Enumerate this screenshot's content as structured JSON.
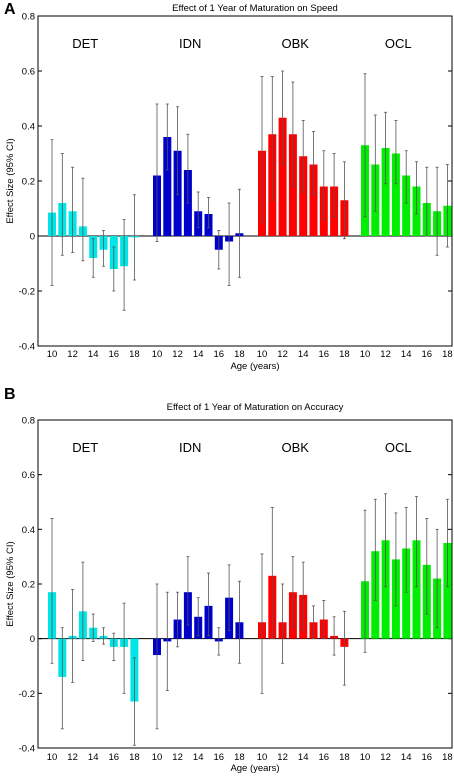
{
  "chart_data": [
    {
      "panel": "A",
      "type": "bar",
      "title": "Effect of 1 Year of Maturation on Speed",
      "xlabel": "Age (years)",
      "ylabel": "Effect Size (95% CI)",
      "ylim": [
        -0.4,
        0.8
      ],
      "yticks": [
        "0.8",
        "0.6",
        "0.4",
        "0.2",
        "0",
        "-0.2",
        "-0.4"
      ],
      "categories": [
        "10",
        "11",
        "12",
        "13",
        "14",
        "15",
        "16",
        "17",
        "18"
      ],
      "xtick_labels": [
        "10",
        "12",
        "14",
        "16",
        "18"
      ],
      "grid": false,
      "series": [
        {
          "name": "DET",
          "color": "#00e5e5",
          "values": [
            0.085,
            0.12,
            0.09,
            0.035,
            -0.08,
            -0.05,
            -0.12,
            -0.11,
            -0.005
          ],
          "ci_low": [
            -0.18,
            -0.07,
            -0.06,
            -0.09,
            -0.15,
            -0.11,
            -0.2,
            -0.27,
            -0.16
          ],
          "ci_high": [
            0.35,
            0.3,
            0.25,
            0.21,
            -0.01,
            0.02,
            -0.04,
            0.06,
            0.15
          ]
        },
        {
          "name": "IDN",
          "color": "#0000cc",
          "values": [
            0.22,
            0.36,
            0.31,
            0.24,
            0.09,
            0.08,
            -0.05,
            -0.02,
            0.01
          ],
          "ci_low": [
            -0.02,
            0.24,
            0.15,
            0.12,
            0.03,
            0.03,
            -0.12,
            -0.18,
            -0.15
          ],
          "ci_high": [
            0.48,
            0.48,
            0.47,
            0.37,
            0.16,
            0.14,
            0.02,
            0.12,
            0.17
          ]
        },
        {
          "name": "OBK",
          "color": "#ff0000",
          "values": [
            0.31,
            0.37,
            0.43,
            0.37,
            0.29,
            0.26,
            0.18,
            0.18,
            0.13
          ],
          "ci_low": [
            0.05,
            0.13,
            0.26,
            0.18,
            0.16,
            0.15,
            0.06,
            0.07,
            -0.01
          ],
          "ci_high": [
            0.58,
            0.58,
            0.6,
            0.56,
            0.42,
            0.38,
            0.31,
            0.3,
            0.27
          ]
        },
        {
          "name": "OCL",
          "color": "#00ee00",
          "values": [
            0.33,
            0.26,
            0.32,
            0.3,
            0.22,
            0.18,
            0.12,
            0.09,
            0.11
          ],
          "ci_low": [
            0.07,
            0.09,
            0.19,
            0.19,
            0.12,
            0.08,
            0.0,
            -0.07,
            -0.04
          ],
          "ci_high": [
            0.59,
            0.44,
            0.45,
            0.42,
            0.31,
            0.27,
            0.25,
            0.25,
            0.26
          ]
        }
      ]
    },
    {
      "panel": "B",
      "type": "bar",
      "title": "Effect of 1 Year of Maturation on Accuracy",
      "xlabel": "Age (years)",
      "ylabel": "Effect Size (95% CI)",
      "ylim": [
        -0.4,
        0.8
      ],
      "yticks": [
        "0.8",
        "0.6",
        "0.4",
        "0.2",
        "0",
        "-0.2",
        "-0.4"
      ],
      "categories": [
        "10",
        "11",
        "12",
        "13",
        "14",
        "15",
        "16",
        "17",
        "18"
      ],
      "xtick_labels": [
        "10",
        "12",
        "14",
        "16",
        "18"
      ],
      "grid": false,
      "series": [
        {
          "name": "DET",
          "color": "#00e5e5",
          "values": [
            0.17,
            -0.14,
            0.01,
            0.1,
            0.04,
            0.01,
            -0.03,
            -0.03,
            -0.23
          ],
          "ci_low": [
            -0.09,
            -0.33,
            -0.16,
            -0.08,
            -0.01,
            -0.02,
            -0.08,
            -0.2,
            -0.39
          ],
          "ci_high": [
            0.44,
            0.04,
            0.18,
            0.28,
            0.09,
            0.04,
            0.02,
            0.13,
            -0.07
          ]
        },
        {
          "name": "IDN",
          "color": "#0000cc",
          "values": [
            -0.06,
            -0.01,
            0.07,
            0.17,
            0.08,
            0.12,
            -0.01,
            0.15,
            0.06
          ],
          "ci_low": [
            -0.33,
            -0.19,
            -0.03,
            0.05,
            0.01,
            0.01,
            -0.06,
            0.03,
            -0.09
          ],
          "ci_high": [
            0.2,
            0.17,
            0.17,
            0.3,
            0.15,
            0.24,
            0.04,
            0.27,
            0.21
          ]
        },
        {
          "name": "OBK",
          "color": "#ff0000",
          "values": [
            0.06,
            0.23,
            0.06,
            0.17,
            0.16,
            0.06,
            0.07,
            0.01,
            -0.03
          ],
          "ci_low": [
            -0.2,
            0.0,
            -0.09,
            0.04,
            0.03,
            0.0,
            0.0,
            -0.06,
            -0.17
          ],
          "ci_high": [
            0.31,
            0.48,
            0.2,
            0.3,
            0.28,
            0.12,
            0.14,
            0.08,
            0.1
          ]
        },
        {
          "name": "OCL",
          "color": "#00ee00",
          "values": [
            0.21,
            0.32,
            0.36,
            0.29,
            0.33,
            0.36,
            0.27,
            0.22,
            0.35
          ],
          "ci_low": [
            -0.05,
            0.14,
            0.19,
            0.12,
            0.17,
            0.19,
            0.09,
            0.04,
            0.19
          ],
          "ci_high": [
            0.47,
            0.51,
            0.53,
            0.46,
            0.48,
            0.52,
            0.44,
            0.4,
            0.51
          ]
        }
      ]
    }
  ]
}
